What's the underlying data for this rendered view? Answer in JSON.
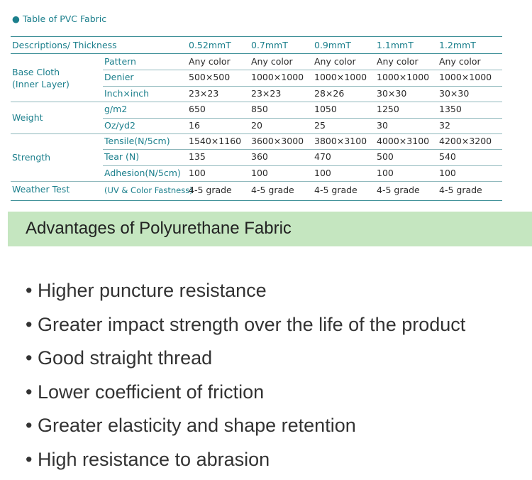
{
  "title": "Table of PVC Fabric",
  "table": {
    "header": [
      "Descriptions/ Thickness",
      "0.52mmT",
      "0.7mmT",
      "0.9mmT",
      "1.1mmT",
      "1.2mmT"
    ],
    "groups": [
      {
        "label": [
          "Base Cloth",
          "(Inner Layer)"
        ],
        "rows": [
          {
            "name": "Pattern",
            "values": [
              "Any color",
              "Any color",
              "Any color",
              "Any color",
              "Any color"
            ]
          },
          {
            "name": "Denier",
            "values": [
              "500×500",
              "1000×1000",
              "1000×1000",
              "1000×1000",
              "1000×1000"
            ]
          },
          {
            "name": "Inch×inch",
            "values": [
              "23×23",
              "23×23",
              "28×26",
              "30×30",
              "30×30"
            ]
          }
        ]
      },
      {
        "label": [
          "Weight"
        ],
        "rows": [
          {
            "name": "g/m2",
            "values": [
              "650",
              "850",
              "1050",
              "1250",
              "1350"
            ]
          },
          {
            "name": "Oz/yd2",
            "values": [
              "16",
              "20",
              "25",
              "30",
              "32"
            ]
          }
        ]
      },
      {
        "label": [
          "Strength"
        ],
        "rows": [
          {
            "name": "Tensile(N/5cm)",
            "values": [
              "1540×1160",
              "3600×3000",
              "3800×3100",
              "4000×3100",
              "4200×3200"
            ]
          },
          {
            "name": "Tear (N)",
            "values": [
              "135",
              "360",
              "470",
              "500",
              "540"
            ]
          },
          {
            "name": "Adhesion(N/5cm)",
            "values": [
              "100",
              "100",
              "100",
              "100",
              "100"
            ]
          }
        ]
      },
      {
        "label": [
          "Weather Test"
        ],
        "rows": [
          {
            "name": "(UV & Color Fastness)",
            "values": [
              "4-5 grade",
              "4-5 grade",
              "4-5 grade",
              "4-5 grade",
              "4-5 grade"
            ]
          }
        ]
      }
    ]
  },
  "section": {
    "heading": "Advantages of Polyurethane Fabric",
    "items": [
      "Higher puncture resistance",
      "Greater impact strength over the life of the product",
      "Good straight thread",
      "Lower coefficient of friction",
      "Greater elasticity and shape retention",
      "High resistance to abrasion"
    ]
  }
}
